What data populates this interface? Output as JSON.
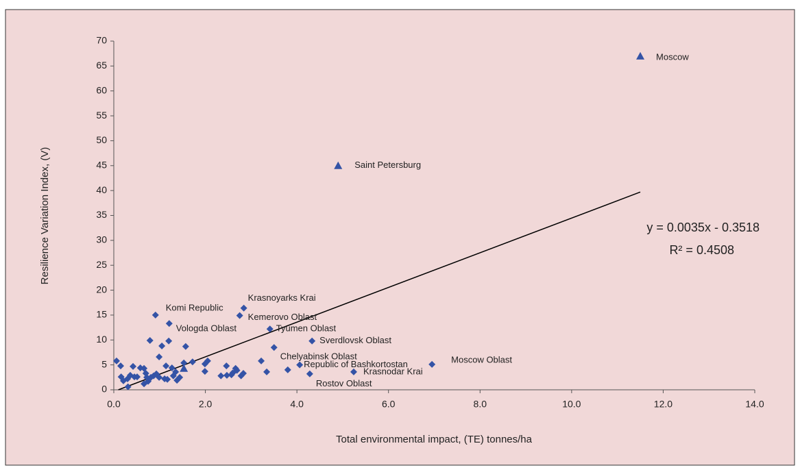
{
  "chart_data": {
    "type": "scatter",
    "x_label": "Total environmental impact, (TE) tonnes/ha",
    "y_label": "Resilience Variation Index, (V)",
    "xlim": [
      0,
      14
    ],
    "ylim": [
      0,
      70
    ],
    "xticks": [
      {
        "value": 0,
        "label": "0.0"
      },
      {
        "value": 2,
        "label": "2.0"
      },
      {
        "value": 4,
        "label": "4.0"
      },
      {
        "value": 6,
        "label": "6.0"
      },
      {
        "value": 8,
        "label": "8.0"
      },
      {
        "value": 10,
        "label": "10.0"
      },
      {
        "value": 12,
        "label": "12.0"
      },
      {
        "value": 14,
        "label": "14.0"
      }
    ],
    "yticks": [
      0,
      5,
      10,
      15,
      20,
      25,
      30,
      35,
      40,
      45,
      50,
      55,
      60,
      65,
      70
    ],
    "grid": false,
    "series": [
      {
        "marker": "diamond",
        "color": "#3453a6",
        "x": [
          0.91,
          2.84,
          2.75,
          3.41,
          1.21,
          4.33,
          3.5,
          4.06,
          6.95,
          5.24,
          4.28,
          0.06,
          0.15,
          0.16,
          0.21,
          0.3,
          0.31,
          0.36,
          0.42,
          0.45,
          0.51,
          0.58,
          0.66,
          0.7,
          0.66,
          0.75,
          0.72,
          0.79,
          0.81,
          0.87,
          0.93,
          0.99,
          1.05,
          1.2,
          1.57,
          0.99,
          1.11,
          1.14,
          1.17,
          1.27,
          1.3,
          1.38,
          1.35,
          1.44,
          1.53,
          1.72,
          1.99,
          2.05,
          1.99,
          2.34,
          2.46,
          2.47,
          2.57,
          2.6,
          2.66,
          2.69,
          2.78,
          2.83,
          3.22,
          3.34,
          3.8
        ],
        "values": [
          15.0,
          16.4,
          14.9,
          12.2,
          13.3,
          9.8,
          8.5,
          5.0,
          5.1,
          3.6,
          3.2,
          5.8,
          4.8,
          2.6,
          1.8,
          2.2,
          0.6,
          2.9,
          4.7,
          2.6,
          2.6,
          4.4,
          4.3,
          3.3,
          1.2,
          1.7,
          2.5,
          9.9,
          2.5,
          2.8,
          3.2,
          2.5,
          8.8,
          9.8,
          8.7,
          6.6,
          2.2,
          4.8,
          2.1,
          4.4,
          2.8,
          1.9,
          3.6,
          2.5,
          5.4,
          5.6,
          5.2,
          5.8,
          3.7,
          2.8,
          4.8,
          2.9,
          3.0,
          3.4,
          4.3,
          3.9,
          2.8,
          3.3,
          5.8,
          3.6,
          4.0
        ],
        "labels": [
          "Komi Republic",
          "Krasnoyarks Krai",
          "Kemerovo Oblast",
          "Tyumen Oblast",
          "Vologda Oblast",
          "Sverdlovsk Oblast",
          "Chelyabinsk Oblast",
          "Republic of Bashkortostan",
          "Moscow Oblast",
          "Krasnodar Krai",
          "Rostov Oblast"
        ]
      },
      {
        "marker": "triangle",
        "color": "#3453a6",
        "x": [
          11.5,
          4.9,
          1.53
        ],
        "values": [
          67,
          45,
          4.3
        ],
        "labels": [
          "Moscow",
          "Saint Petersburg"
        ]
      }
    ],
    "trendline": {
      "color": "#000000",
      "x": [
        0.1,
        11.5
      ],
      "values": [
        0,
        39.7
      ]
    },
    "equation": "y = 0.0035x - 0.3518",
    "r_squared": "R² = 0.4508"
  }
}
